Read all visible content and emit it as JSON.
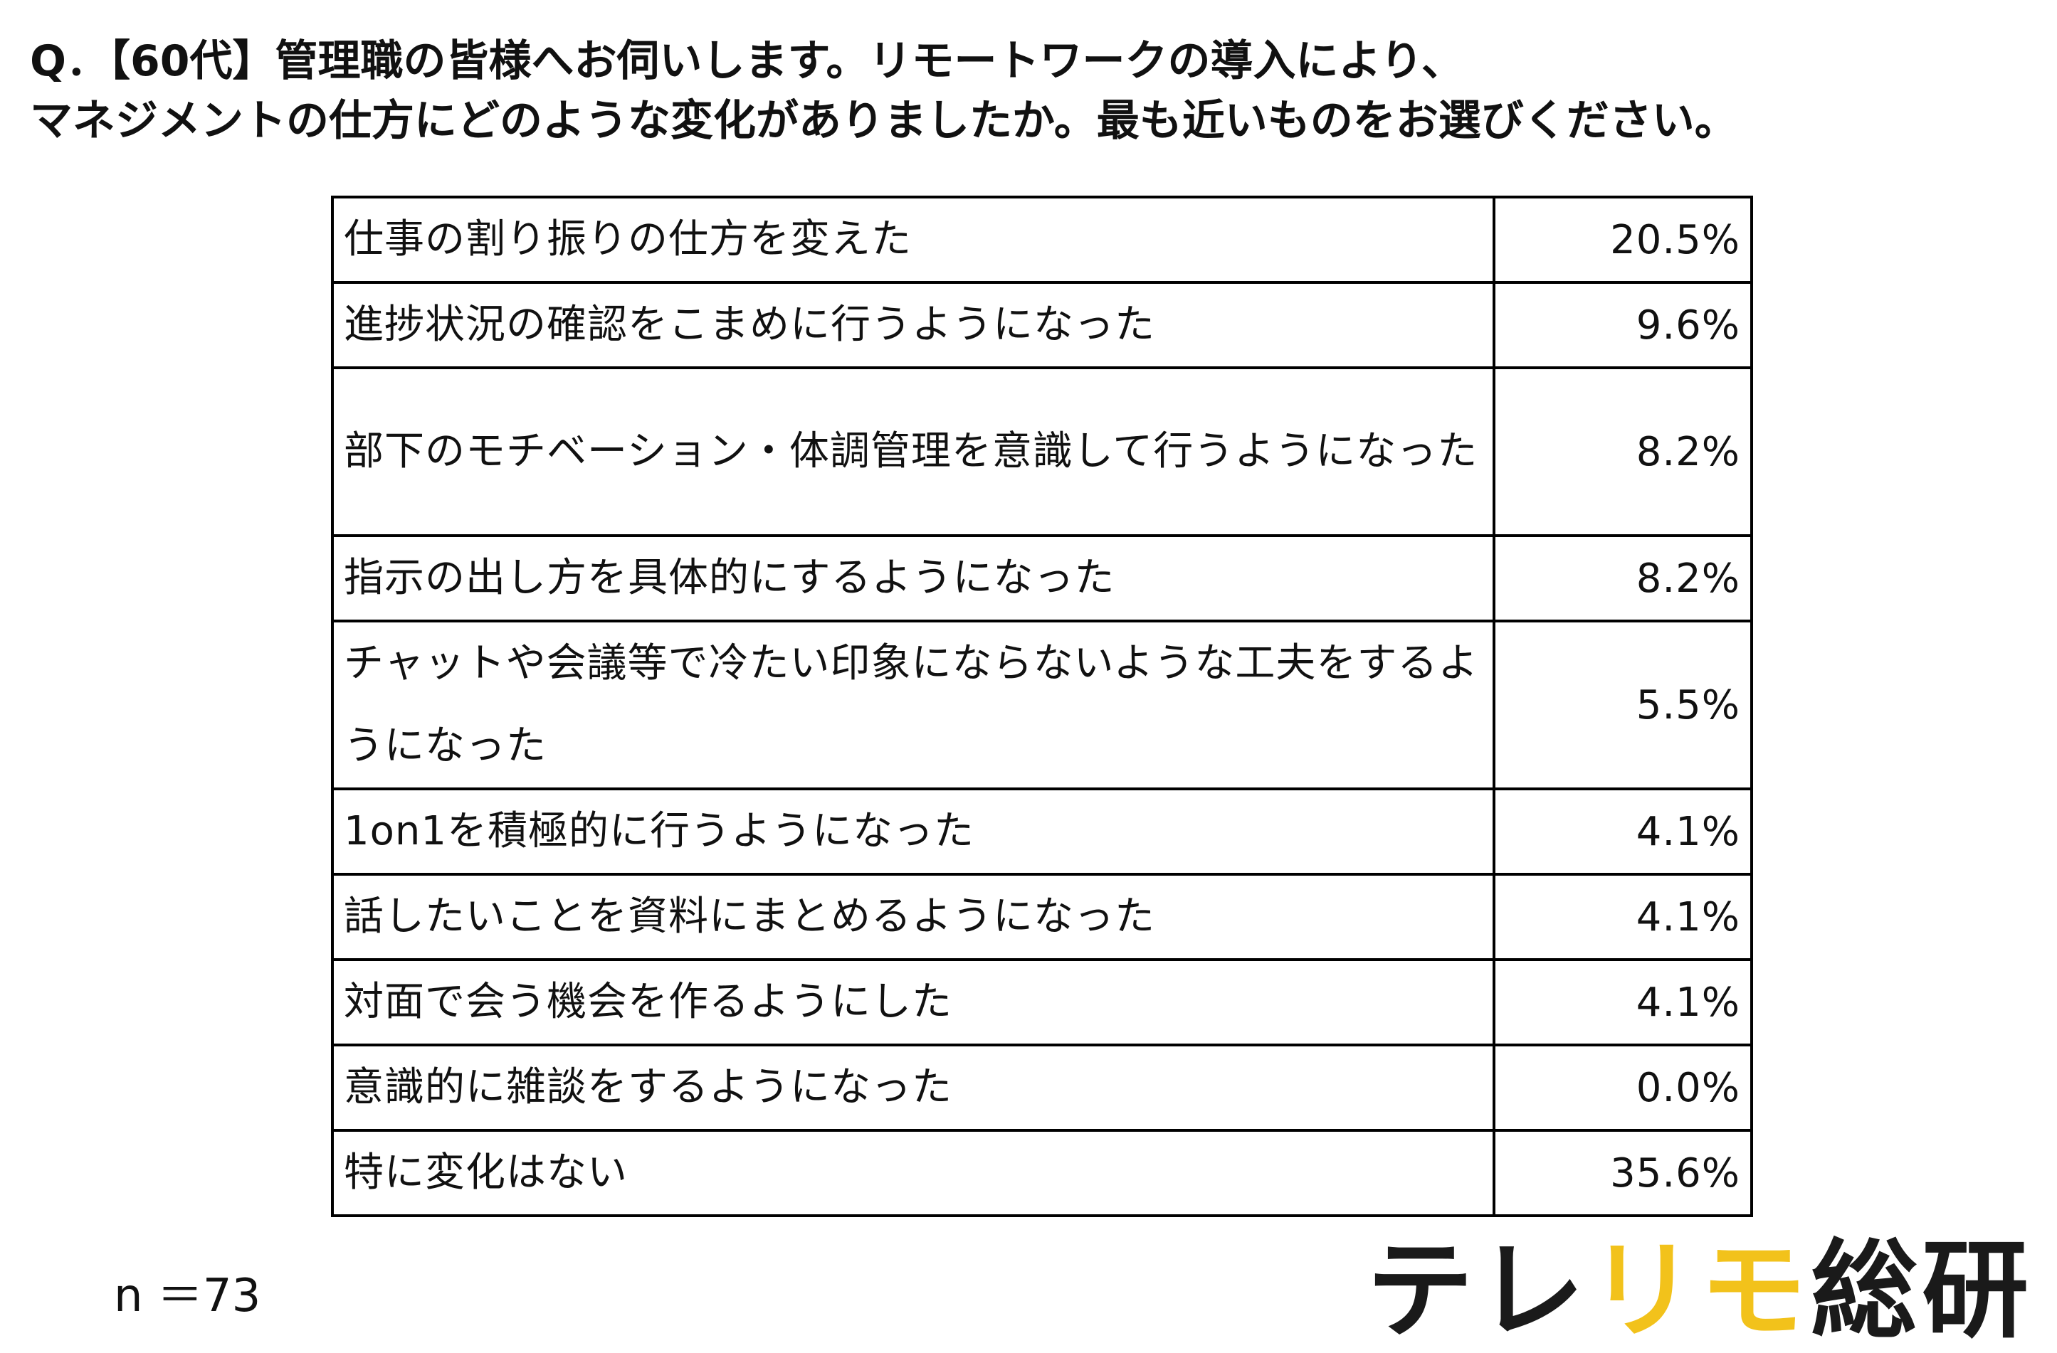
{
  "question": {
    "line1": "Q．【60代】管理職の皆様へお伺いします。リモートワークの導入により、",
    "line2": "マネジメントの仕方にどのような変化がありましたか。最も近いものをお選びください。"
  },
  "chart_data": {
    "type": "table",
    "rows": [
      {
        "label": "仕事の割り振りの仕方を変えた",
        "value": "20.5%"
      },
      {
        "label": "進捗状況の確認をこまめに行うようになった",
        "value": "9.6%"
      },
      {
        "label": "部下のモチベーション・体調管理を意識して行うようになった",
        "value": "8.2%"
      },
      {
        "label": "指示の出し方を具体的にするようになった",
        "value": "8.2%"
      },
      {
        "label": "チャットや会議等で冷たい印象にならないような工夫をするようになった",
        "value": "5.5%"
      },
      {
        "label": "1on1を積極的に行うようになった",
        "value": "4.1%"
      },
      {
        "label": "話したいことを資料にまとめるようになった",
        "value": "4.1%"
      },
      {
        "label": "対面で会う機会を作るようにした",
        "value": "4.1%"
      },
      {
        "label": "意識的に雑談をするようになった",
        "value": "0.0%"
      },
      {
        "label": "特に変化はない",
        "value": "35.6%"
      }
    ]
  },
  "footer": {
    "sample_size": "n ＝73"
  },
  "logo": {
    "part1": "テレ",
    "part2": "リモ",
    "part3": "総研",
    "color_dark": "#1a1a1a",
    "color_accent": "#f2c21b"
  }
}
